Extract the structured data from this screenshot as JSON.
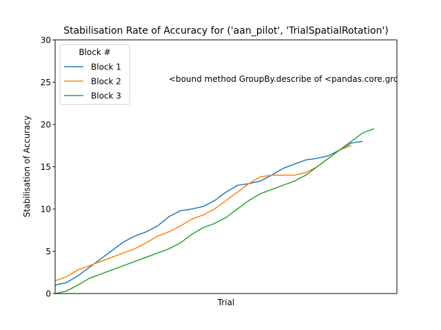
{
  "chart_data": {
    "type": "line",
    "title": "Stabilisation Rate of Accuracy for ('aan_pilot', 'TrialSpatialRotation')",
    "xlabel": "Trial",
    "ylabel": "Stabilisation of Accuracy",
    "ylim": [
      0,
      30
    ],
    "xlim": [
      0,
      30
    ],
    "yticks": [
      "0",
      "5",
      "10",
      "15",
      "20",
      "25",
      "30"
    ],
    "xticks_visible": false,
    "grid": false,
    "legend": {
      "title": "Block #",
      "position": "top-left"
    },
    "annotation": "<bound method GroupBy.describe of <pandas.core.grou",
    "series": [
      {
        "name": "Block 1",
        "color": "#1f77b4",
        "x": [
          0,
          1,
          2,
          3,
          4,
          5,
          6,
          7,
          8,
          9,
          10,
          11,
          12,
          13,
          14,
          15,
          16,
          17,
          18,
          19,
          20,
          21,
          22,
          23,
          24,
          25,
          26,
          27
        ],
        "values": [
          1.0,
          1.3,
          2.1,
          3.1,
          4.1,
          5.1,
          6.1,
          6.8,
          7.3,
          8.0,
          9.1,
          9.8,
          10.0,
          10.3,
          11.0,
          12.0,
          12.8,
          13.0,
          13.3,
          14.0,
          14.8,
          15.3,
          15.8,
          16.0,
          16.3,
          17.0,
          17.8,
          18.0
        ]
      },
      {
        "name": "Block 2",
        "color": "#ff7f0e",
        "x": [
          0,
          1,
          2,
          3,
          4,
          5,
          6,
          7,
          8,
          9,
          10,
          11,
          12,
          13,
          14,
          15,
          16,
          17,
          18,
          19,
          20,
          21,
          22,
          23,
          24,
          25,
          26
        ],
        "values": [
          1.5,
          2.0,
          2.8,
          3.3,
          3.8,
          4.3,
          4.8,
          5.3,
          6.0,
          6.8,
          7.3,
          8.0,
          8.8,
          9.3,
          10.0,
          11.0,
          12.0,
          13.0,
          13.8,
          14.0,
          14.0,
          14.0,
          14.3,
          15.0,
          16.0,
          17.0,
          17.5
        ]
      },
      {
        "name": "Block 3",
        "color": "#2ca02c",
        "x": [
          0,
          1,
          2,
          3,
          4,
          5,
          6,
          7,
          8,
          9,
          10,
          11,
          12,
          13,
          14,
          15,
          16,
          17,
          18,
          19,
          20,
          21,
          22,
          23,
          24,
          25,
          26,
          27,
          28
        ],
        "values": [
          0.0,
          0.3,
          1.0,
          1.8,
          2.3,
          2.8,
          3.3,
          3.8,
          4.3,
          4.8,
          5.3,
          6.0,
          7.0,
          7.8,
          8.3,
          9.0,
          10.0,
          11.0,
          11.8,
          12.3,
          12.8,
          13.3,
          14.0,
          15.0,
          16.0,
          17.0,
          18.0,
          19.0,
          19.5
        ]
      }
    ]
  }
}
